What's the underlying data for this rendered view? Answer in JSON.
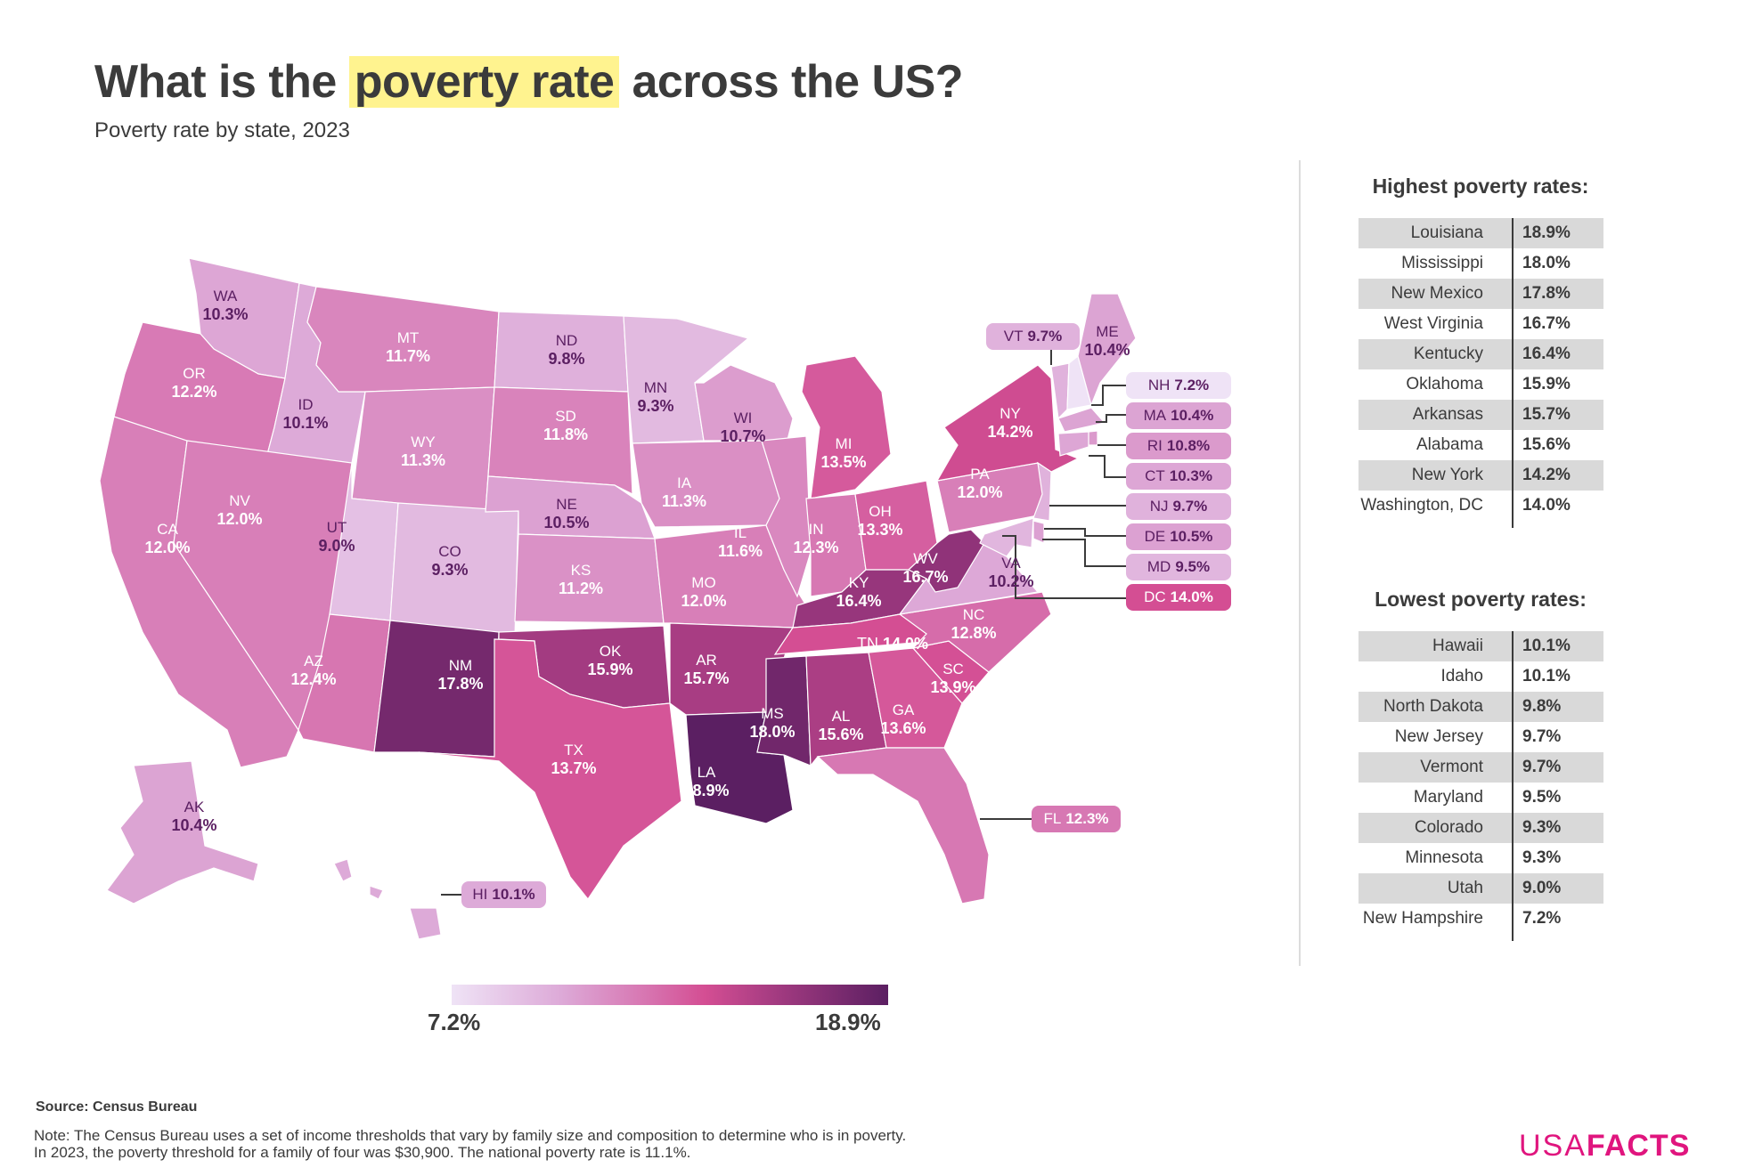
{
  "header": {
    "title_before": "What is the",
    "title_highlight": "poverty rate",
    "title_after": "across the US?",
    "subtitle": "Poverty rate by state, 2023"
  },
  "colors": {
    "highlight": "#fff38f",
    "brand": "#e0157e",
    "scale_low": "#efe3f6",
    "scale_mid": "#d44e93",
    "scale_high": "#5b1f62"
  },
  "chart_data": {
    "type": "choropleth",
    "title": "What is the poverty rate across the US?",
    "subtitle": "Poverty rate by state, 2023",
    "unit": "%",
    "scale": {
      "min": 7.2,
      "max": 18.9,
      "min_label": "7.2%",
      "max_label": "18.9%"
    },
    "states": [
      {
        "code": "WA",
        "value": 10.3,
        "label": "10.3%"
      },
      {
        "code": "OR",
        "value": 12.2,
        "label": "12.2%"
      },
      {
        "code": "CA",
        "value": 12.0,
        "label": "12.0%"
      },
      {
        "code": "ID",
        "value": 10.1,
        "label": "10.1%"
      },
      {
        "code": "NV",
        "value": 12.0,
        "label": "12.0%"
      },
      {
        "code": "MT",
        "value": 11.7,
        "label": "11.7%"
      },
      {
        "code": "WY",
        "value": 11.3,
        "label": "11.3%"
      },
      {
        "code": "UT",
        "value": 9.0,
        "label": "9.0%"
      },
      {
        "code": "AZ",
        "value": 12.4,
        "label": "12.4%"
      },
      {
        "code": "CO",
        "value": 9.3,
        "label": "9.3%"
      },
      {
        "code": "NM",
        "value": 17.8,
        "label": "17.8%"
      },
      {
        "code": "ND",
        "value": 9.8,
        "label": "9.8%"
      },
      {
        "code": "SD",
        "value": 11.8,
        "label": "11.8%"
      },
      {
        "code": "NE",
        "value": 10.5,
        "label": "10.5%"
      },
      {
        "code": "KS",
        "value": 11.2,
        "label": "11.2%"
      },
      {
        "code": "OK",
        "value": 15.9,
        "label": "15.9%"
      },
      {
        "code": "TX",
        "value": 13.7,
        "label": "13.7%"
      },
      {
        "code": "MN",
        "value": 9.3,
        "label": "9.3%"
      },
      {
        "code": "IA",
        "value": 11.3,
        "label": "11.3%"
      },
      {
        "code": "MO",
        "value": 12.0,
        "label": "12.0%"
      },
      {
        "code": "AR",
        "value": 15.7,
        "label": "15.7%"
      },
      {
        "code": "LA",
        "value": 18.9,
        "label": "18.9%"
      },
      {
        "code": "WI",
        "value": 10.7,
        "label": "10.7%"
      },
      {
        "code": "IL",
        "value": 11.6,
        "label": "11.6%"
      },
      {
        "code": "MI",
        "value": 13.5,
        "label": "13.5%"
      },
      {
        "code": "IN",
        "value": 12.3,
        "label": "12.3%"
      },
      {
        "code": "OH",
        "value": 13.3,
        "label": "13.3%"
      },
      {
        "code": "KY",
        "value": 16.4,
        "label": "16.4%"
      },
      {
        "code": "TN",
        "value": 14.0,
        "label": "14.0%"
      },
      {
        "code": "MS",
        "value": 18.0,
        "label": "18.0%"
      },
      {
        "code": "AL",
        "value": 15.6,
        "label": "15.6%"
      },
      {
        "code": "GA",
        "value": 13.6,
        "label": "13.6%"
      },
      {
        "code": "FL",
        "value": 12.3,
        "label": "12.3%"
      },
      {
        "code": "SC",
        "value": 13.9,
        "label": "13.9%"
      },
      {
        "code": "NC",
        "value": 12.8,
        "label": "12.8%"
      },
      {
        "code": "VA",
        "value": 10.2,
        "label": "10.2%"
      },
      {
        "code": "WV",
        "value": 16.7,
        "label": "16.7%"
      },
      {
        "code": "PA",
        "value": 12.0,
        "label": "12.0%"
      },
      {
        "code": "NY",
        "value": 14.2,
        "label": "14.2%"
      },
      {
        "code": "VT",
        "value": 9.7,
        "label": "9.7%"
      },
      {
        "code": "NH",
        "value": 7.2,
        "label": "7.2%"
      },
      {
        "code": "ME",
        "value": 10.4,
        "label": "10.4%"
      },
      {
        "code": "MA",
        "value": 10.4,
        "label": "10.4%"
      },
      {
        "code": "RI",
        "value": 10.8,
        "label": "10.8%"
      },
      {
        "code": "CT",
        "value": 10.3,
        "label": "10.3%"
      },
      {
        "code": "NJ",
        "value": 9.7,
        "label": "9.7%"
      },
      {
        "code": "DE",
        "value": 10.5,
        "label": "10.5%"
      },
      {
        "code": "MD",
        "value": 9.5,
        "label": "9.5%"
      },
      {
        "code": "DC",
        "value": 14.0,
        "label": "14.0%"
      },
      {
        "code": "AK",
        "value": 10.4,
        "label": "10.4%"
      },
      {
        "code": "HI",
        "value": 10.1,
        "label": "10.1%"
      }
    ],
    "callouts": [
      "VT",
      "NH",
      "MA",
      "RI",
      "CT",
      "NJ",
      "DE",
      "MD",
      "DC",
      "FL",
      "HI"
    ]
  },
  "rankings": {
    "highest": {
      "title": "Highest poverty rates:",
      "rows": [
        {
          "name": "Louisiana",
          "value": "18.9%"
        },
        {
          "name": "Mississippi",
          "value": "18.0%"
        },
        {
          "name": "New Mexico",
          "value": "17.8%"
        },
        {
          "name": "West Virginia",
          "value": "16.7%"
        },
        {
          "name": "Kentucky",
          "value": "16.4%"
        },
        {
          "name": "Oklahoma",
          "value": "15.9%"
        },
        {
          "name": "Arkansas",
          "value": "15.7%"
        },
        {
          "name": "Alabama",
          "value": "15.6%"
        },
        {
          "name": "New York",
          "value": "14.2%"
        },
        {
          "name": "Washington, DC",
          "value": "14.0%"
        }
      ]
    },
    "lowest": {
      "title": "Lowest poverty rates:",
      "rows": [
        {
          "name": "Hawaii",
          "value": "10.1%"
        },
        {
          "name": "Idaho",
          "value": "10.1%"
        },
        {
          "name": "North Dakota",
          "value": "9.8%"
        },
        {
          "name": "New Jersey",
          "value": "9.7%"
        },
        {
          "name": "Vermont",
          "value": "9.7%"
        },
        {
          "name": "Maryland",
          "value": "9.5%"
        },
        {
          "name": "Colorado",
          "value": "9.3%"
        },
        {
          "name": "Minnesota",
          "value": "9.3%"
        },
        {
          "name": "Utah",
          "value": "9.0%"
        },
        {
          "name": "New Hampshire",
          "value": "7.2%"
        }
      ]
    }
  },
  "footer": {
    "source": "Source: Census Bureau",
    "note": "Note: The Census Bureau uses a set of income thresholds that vary by family size and composition to determine who is in poverty. In 2023, the poverty threshold for a family of four was $30,900. The national poverty rate is 11.1%.",
    "logo_light": "USA",
    "logo_bold": "FACTS"
  }
}
